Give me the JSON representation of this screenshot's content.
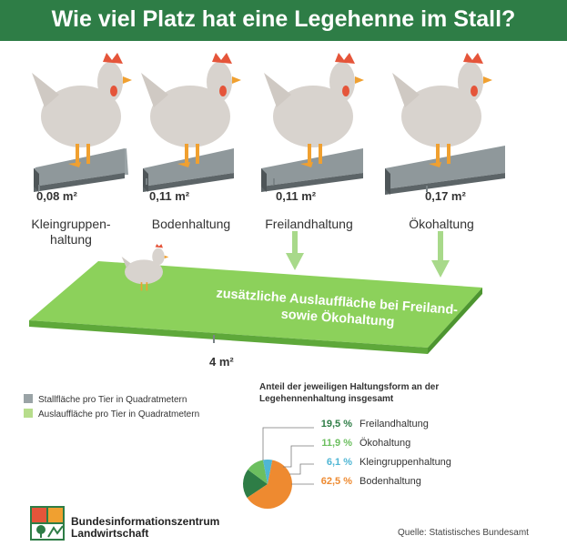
{
  "header": {
    "title": "Wie viel Platz hat eine Legehenne im Stall?"
  },
  "stall": [
    {
      "area": "0,08 m²",
      "label": "Kleingruppen-\nhaltung"
    },
    {
      "area": "0,11 m²",
      "label": "Bodenhaltung"
    },
    {
      "area": "0,11 m²",
      "label": "Freilandhaltung"
    },
    {
      "area": "0,17 m²",
      "label": "Ökohaltung"
    }
  ],
  "auslauf": {
    "text": "zusätzliche Auslauffläche bei Freiland-\nsowie Ökohaltung",
    "area": "4 m²"
  },
  "legend": [
    {
      "label": "Stallfläche pro Tier in Quadratmetern",
      "color": "#9aa3a6"
    },
    {
      "label": "Auslauffläche pro Tier in Quadratmetern",
      "color": "#b7dd8c"
    }
  ],
  "colors": {
    "header": "#2e7d46",
    "field": "#8cd15b",
    "field_edge": "#5ea83a",
    "platform": "#8f989b",
    "arrow": "#a8d98a"
  },
  "chart_data": {
    "type": "pie",
    "title": "Anteil der jeweiligen Haltungsform an der Legehennenhaltung insgesamt",
    "slices": [
      {
        "label": "Freilandhaltung",
        "value": 19.5,
        "display": "19,5 %",
        "color": "#2e7d46"
      },
      {
        "label": "Ökohaltung",
        "value": 11.9,
        "display": "11,9 %",
        "color": "#6cbf5f"
      },
      {
        "label": "Kleingruppenhaltung",
        "value": 6.1,
        "display": "6,1 %",
        "color": "#4fb6d4"
      },
      {
        "label": "Bodenhaltung",
        "value": 62.5,
        "display": "62,5 %",
        "color": "#ee8a30"
      }
    ]
  },
  "logo": {
    "text": "Bundesinformationszentrum\nLandwirtschaft"
  },
  "source": "Quelle: Statistisches Bundesamt"
}
